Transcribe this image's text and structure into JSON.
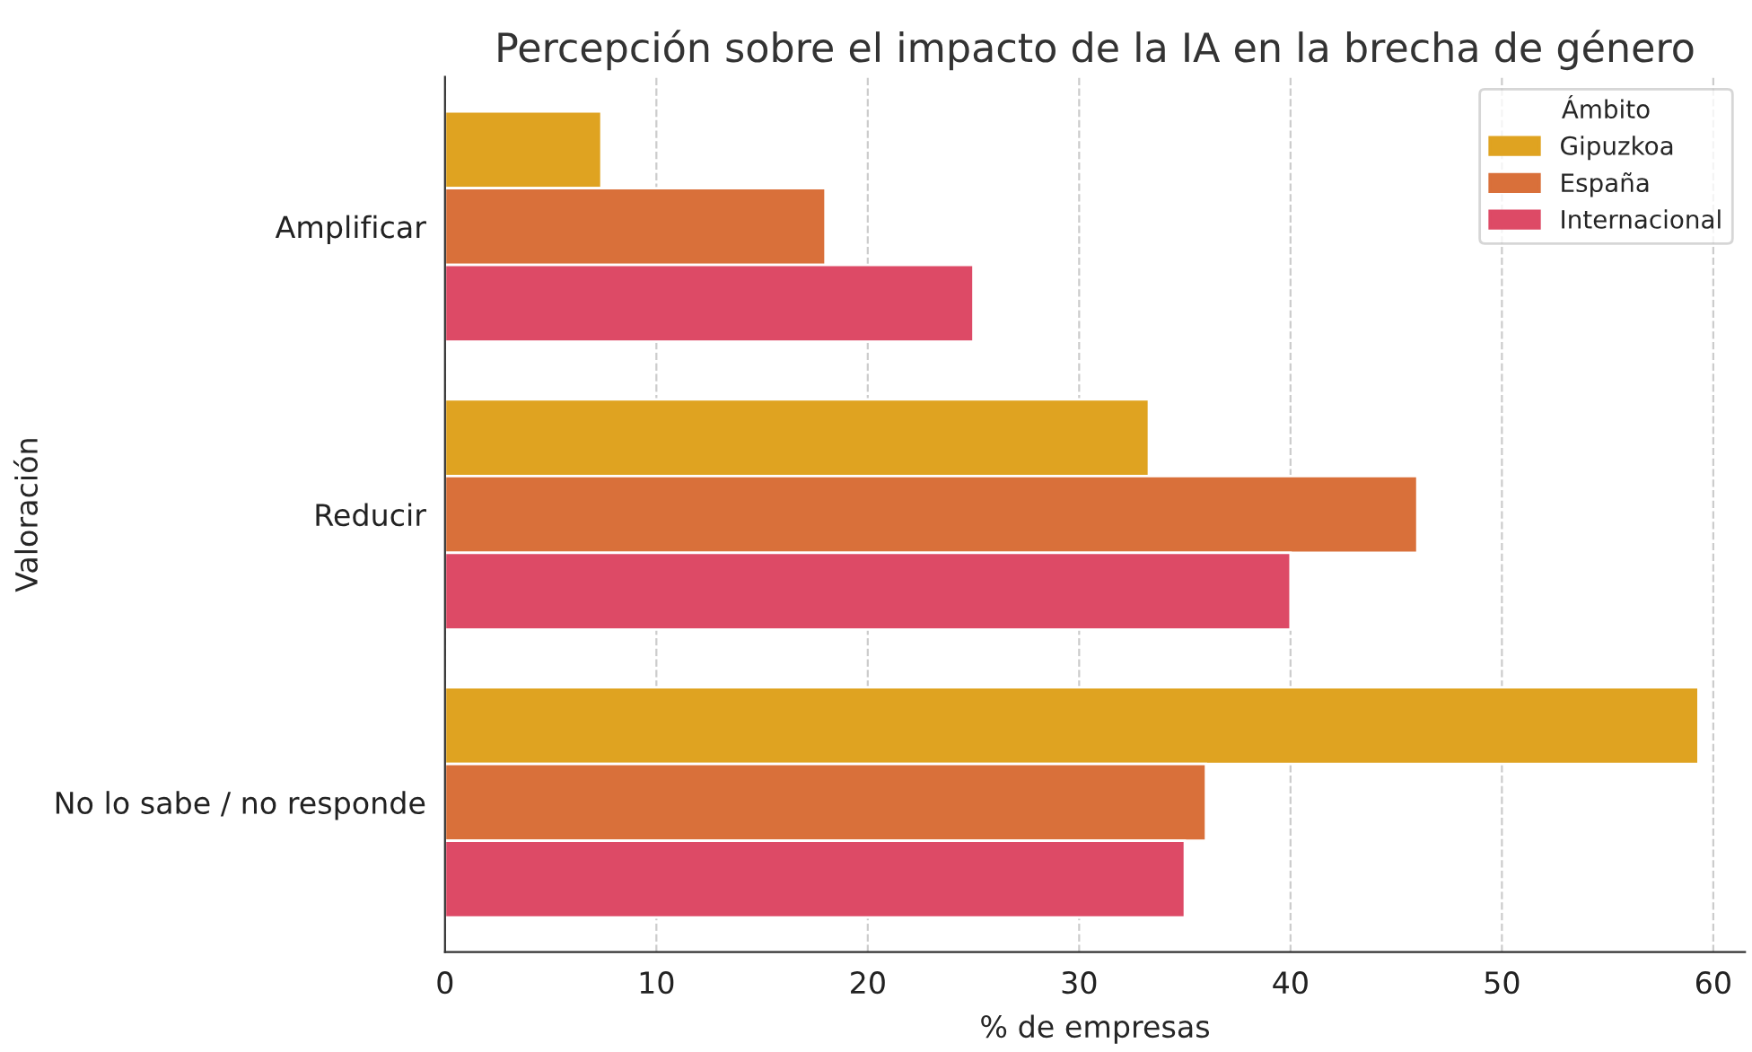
{
  "chart_data": {
    "type": "bar",
    "orientation": "horizontal",
    "title": "Percepción sobre el impacto de la IA en la brecha de género",
    "xlabel": "% de empresas",
    "ylabel": "Valoración",
    "legend_title": "Ámbito",
    "categories": [
      "Amplificar",
      "Reducir",
      "No lo sabe / no responde"
    ],
    "series": [
      {
        "name": "Gipuzkoa",
        "color": "#dfa321",
        "values": [
          7.4,
          33.3,
          59.3
        ]
      },
      {
        "name": "España",
        "color": "#d9703a",
        "values": [
          18.0,
          46.0,
          36.0
        ]
      },
      {
        "name": "Internacional",
        "color": "#dd4a66",
        "values": [
          25.0,
          40.0,
          35.0
        ]
      }
    ],
    "xlim": [
      0,
      61.5
    ],
    "xticks": [
      0,
      10,
      20,
      30,
      40,
      50,
      60
    ],
    "grid": "x",
    "legend": "top right"
  }
}
